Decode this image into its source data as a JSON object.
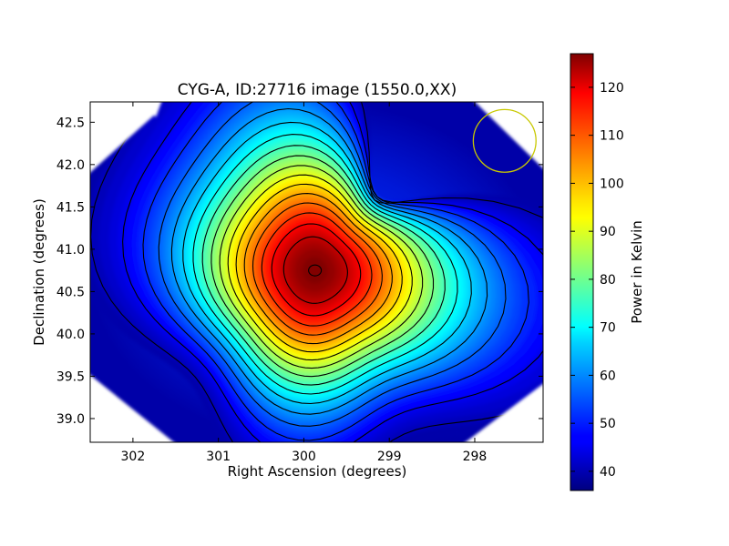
{
  "chart_data": {
    "type": "heatmap",
    "title": "CYG-A, ID:27716 image (1550.0,XX)",
    "xlabel": "Right Ascension (degrees)",
    "ylabel": "Declination (degrees)",
    "xlim": [
      302.5,
      297.2
    ],
    "ylim": [
      38.72,
      42.74
    ],
    "x_axis_inverted": true,
    "xticks": [
      302,
      301,
      300,
      299,
      298
    ],
    "xtick_labels": [
      "302",
      "301",
      "300",
      "299",
      "298"
    ],
    "yticks": [
      39.0,
      39.5,
      40.0,
      40.5,
      41.0,
      41.5,
      42.0,
      42.5
    ],
    "ytick_labels": [
      "39.0",
      "39.5",
      "40.0",
      "40.5",
      "41.0",
      "41.5",
      "42.0",
      "42.5"
    ],
    "colormap": "jet",
    "colorbar": {
      "label": "Power in Kelvin",
      "range": [
        36,
        127
      ],
      "ticks": [
        40,
        50,
        60,
        70,
        80,
        90,
        100,
        110,
        120
      ],
      "tick_labels": [
        "40",
        "50",
        "60",
        "70",
        "80",
        "90",
        "100",
        "110",
        "120"
      ]
    },
    "source": {
      "ra": 299.87,
      "dec": 40.75,
      "peak_kelvin": 127,
      "background_kelvin": 36
    },
    "contour_levels_kelvin": [
      41,
      46,
      51,
      56,
      61,
      66,
      71,
      76,
      81,
      86,
      91,
      96,
      101,
      106,
      111,
      116,
      121
    ],
    "beam_marker": {
      "ra": 297.65,
      "dec": 42.28,
      "radius_deg": 0.37,
      "color": "#c8c800"
    },
    "colors": {
      "mask": "#ffffff",
      "contour": "#000000"
    }
  }
}
